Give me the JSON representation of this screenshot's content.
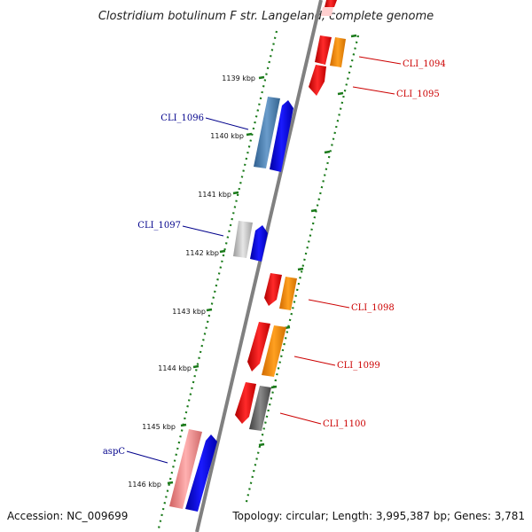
{
  "title": "Clostridium botulinum F str. Langeland, complete genome",
  "footer": {
    "accession": "Accession: NC_009699",
    "summary": "Topology: circular; Length: 3,995,387 bp; Genes: 3,781"
  },
  "ticks": [
    "1139 kbp",
    "1140 kbp",
    "1141 kbp",
    "1142 kbp",
    "1143 kbp",
    "1144 kbp",
    "1145 kbp",
    "1146 kbp"
  ],
  "labels": {
    "reverse": [
      "CLI_1096",
      "CLI_1097",
      "aspC"
    ],
    "forward": [
      "CLI_1094",
      "CLI_1095",
      "CLI_1098",
      "CLI_1099",
      "CLI_1100"
    ]
  },
  "colors": {
    "backbone": "#808080",
    "tick_mark": "#1a7a1a",
    "label_reverse": "#00008b",
    "label_forward": "#cc0000",
    "cds": "#ff0000",
    "cds_alt": "#ff8c00",
    "gene": "#0000ff",
    "rna_blue": "#4a7fb5",
    "rna_gray": "#b8b8b8",
    "rna_pink": "#f08080",
    "dark_gray": "#606060"
  }
}
